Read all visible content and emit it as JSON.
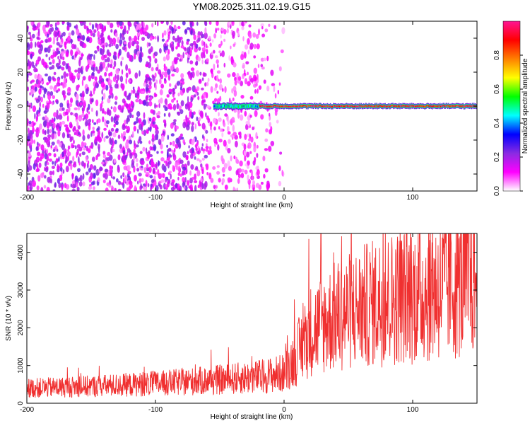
{
  "title": "YM08.2025.311.02.19.G15",
  "chart_data": [
    {
      "type": "heatmap",
      "xlabel": "Height of straight line (km)",
      "ylabel": "Frequency (Hz)",
      "xlim": [
        -200,
        150
      ],
      "ylim": [
        -50,
        50
      ],
      "xticks": [
        -200,
        -100,
        0,
        100
      ],
      "yticks": [
        -40,
        -20,
        0,
        20,
        40
      ],
      "colorbar": {
        "label": "Normalized spectral amplitude",
        "range": [
          0,
          1
        ],
        "ticks": [
          "0.0",
          "0.2",
          "0.4",
          "0.6",
          "0.8"
        ],
        "colormap": [
          "#ffffff",
          "#ff00ff",
          "#8a2be2",
          "#0000ff",
          "#00ffff",
          "#00ff00",
          "#ffff00",
          "#ff8000",
          "#ff0000",
          "#ff1493"
        ]
      },
      "signal": {
        "frequency_hz": 0,
        "x_range": [
          -55,
          150
        ],
        "peak_amplitude_range": [
          0.8,
          1.0
        ]
      },
      "noise_region": {
        "x_range": [
          -200,
          0
        ],
        "typical_amplitude": 0.15
      }
    },
    {
      "type": "line",
      "xlabel": "Height of straight line (km)",
      "ylabel": "SNR (10 * v/v)",
      "xlim": [
        -200,
        150
      ],
      "ylim": [
        0,
        4500
      ],
      "xticks": [
        -200,
        -100,
        0,
        100
      ],
      "yticks": [
        0,
        1000,
        2000,
        3000,
        4000
      ],
      "color": "#f03030",
      "trend": {
        "x": [
          -200,
          -150,
          -100,
          -50,
          -20,
          0,
          10,
          20,
          40,
          60,
          80,
          100,
          120,
          150
        ],
        "y": [
          400,
          450,
          520,
          620,
          700,
          800,
          1300,
          1900,
          2300,
          2550,
          2750,
          2900,
          3050,
          3350
        ]
      }
    }
  ]
}
